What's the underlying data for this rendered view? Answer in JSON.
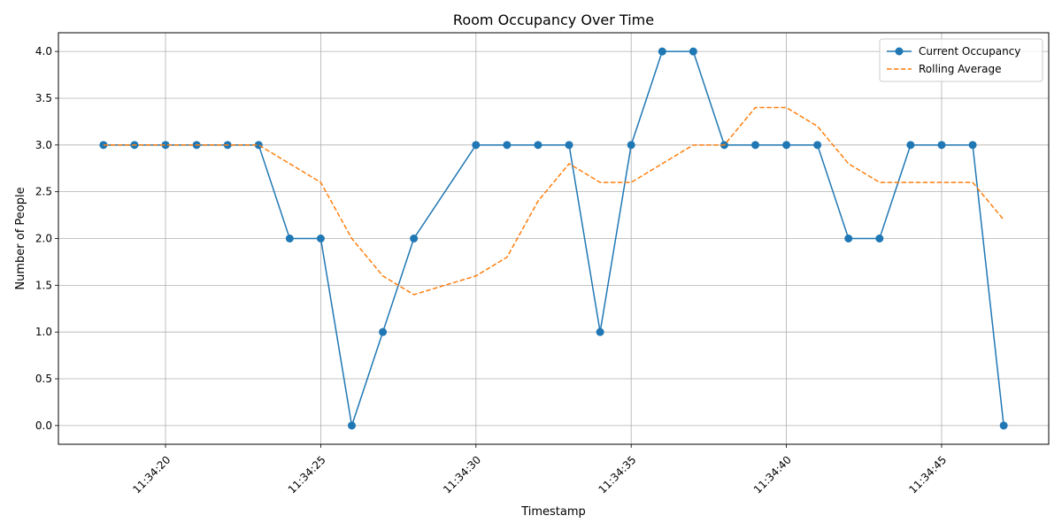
{
  "chart_data": {
    "type": "line",
    "title": "Room Occupancy Over Time",
    "xlabel": "Timestamp",
    "ylabel": "Number of People",
    "x": [
      "11:34:18",
      "11:34:19",
      "11:34:20",
      "11:34:21",
      "11:34:22",
      "11:34:23",
      "11:34:24",
      "11:34:25",
      "11:34:26",
      "11:34:27",
      "11:34:28",
      "11:34:30",
      "11:34:31",
      "11:34:32",
      "11:34:33",
      "11:34:34",
      "11:34:35",
      "11:34:36",
      "11:34:37",
      "11:34:38",
      "11:34:39",
      "11:34:40",
      "11:34:41",
      "11:34:42",
      "11:34:43",
      "11:34:44",
      "11:34:45",
      "11:34:46",
      "11:34:47"
    ],
    "x_seconds": [
      18,
      19,
      20,
      21,
      22,
      23,
      24,
      25,
      26,
      27,
      28,
      30,
      31,
      32,
      33,
      34,
      35,
      36,
      37,
      38,
      39,
      40,
      41,
      42,
      43,
      44,
      45,
      46,
      47
    ],
    "series": [
      {
        "name": "Current Occupancy",
        "color": "#1f77b4",
        "style": "solid",
        "marker": "circle",
        "values": [
          3,
          3,
          3,
          3,
          3,
          3,
          2,
          2,
          0,
          1,
          2,
          3,
          3,
          3,
          3,
          1,
          3,
          4,
          4,
          3,
          3,
          3,
          3,
          2,
          2,
          3,
          3,
          3,
          0
        ]
      },
      {
        "name": "Rolling Average",
        "color": "#ff7f0e",
        "style": "dashed",
        "marker": "none",
        "values": [
          3,
          3,
          3,
          3,
          3,
          3,
          2.8,
          2.6,
          2.0,
          1.6,
          1.4,
          1.6,
          1.8,
          2.4,
          2.8,
          2.6,
          2.6,
          2.8,
          3.0,
          3.0,
          3.4,
          3.4,
          3.2,
          2.8,
          2.6,
          2.6,
          2.6,
          2.6,
          2.2
        ]
      }
    ],
    "xticks": [
      "11:34:20",
      "11:34:25",
      "11:34:30",
      "11:34:35",
      "11:34:40",
      "11:34:45"
    ],
    "xtick_seconds": [
      20,
      25,
      30,
      35,
      40,
      45
    ],
    "xlim_seconds": [
      16.55,
      48.45
    ],
    "yticks": [
      "0.0",
      "0.5",
      "1.0",
      "1.5",
      "2.0",
      "2.5",
      "3.0",
      "3.5",
      "4.0"
    ],
    "ytick_values": [
      0,
      0.5,
      1,
      1.5,
      2,
      2.5,
      3,
      3.5,
      4
    ],
    "ylim": [
      -0.2,
      4.2
    ],
    "grid": true,
    "legend": "top-right"
  }
}
